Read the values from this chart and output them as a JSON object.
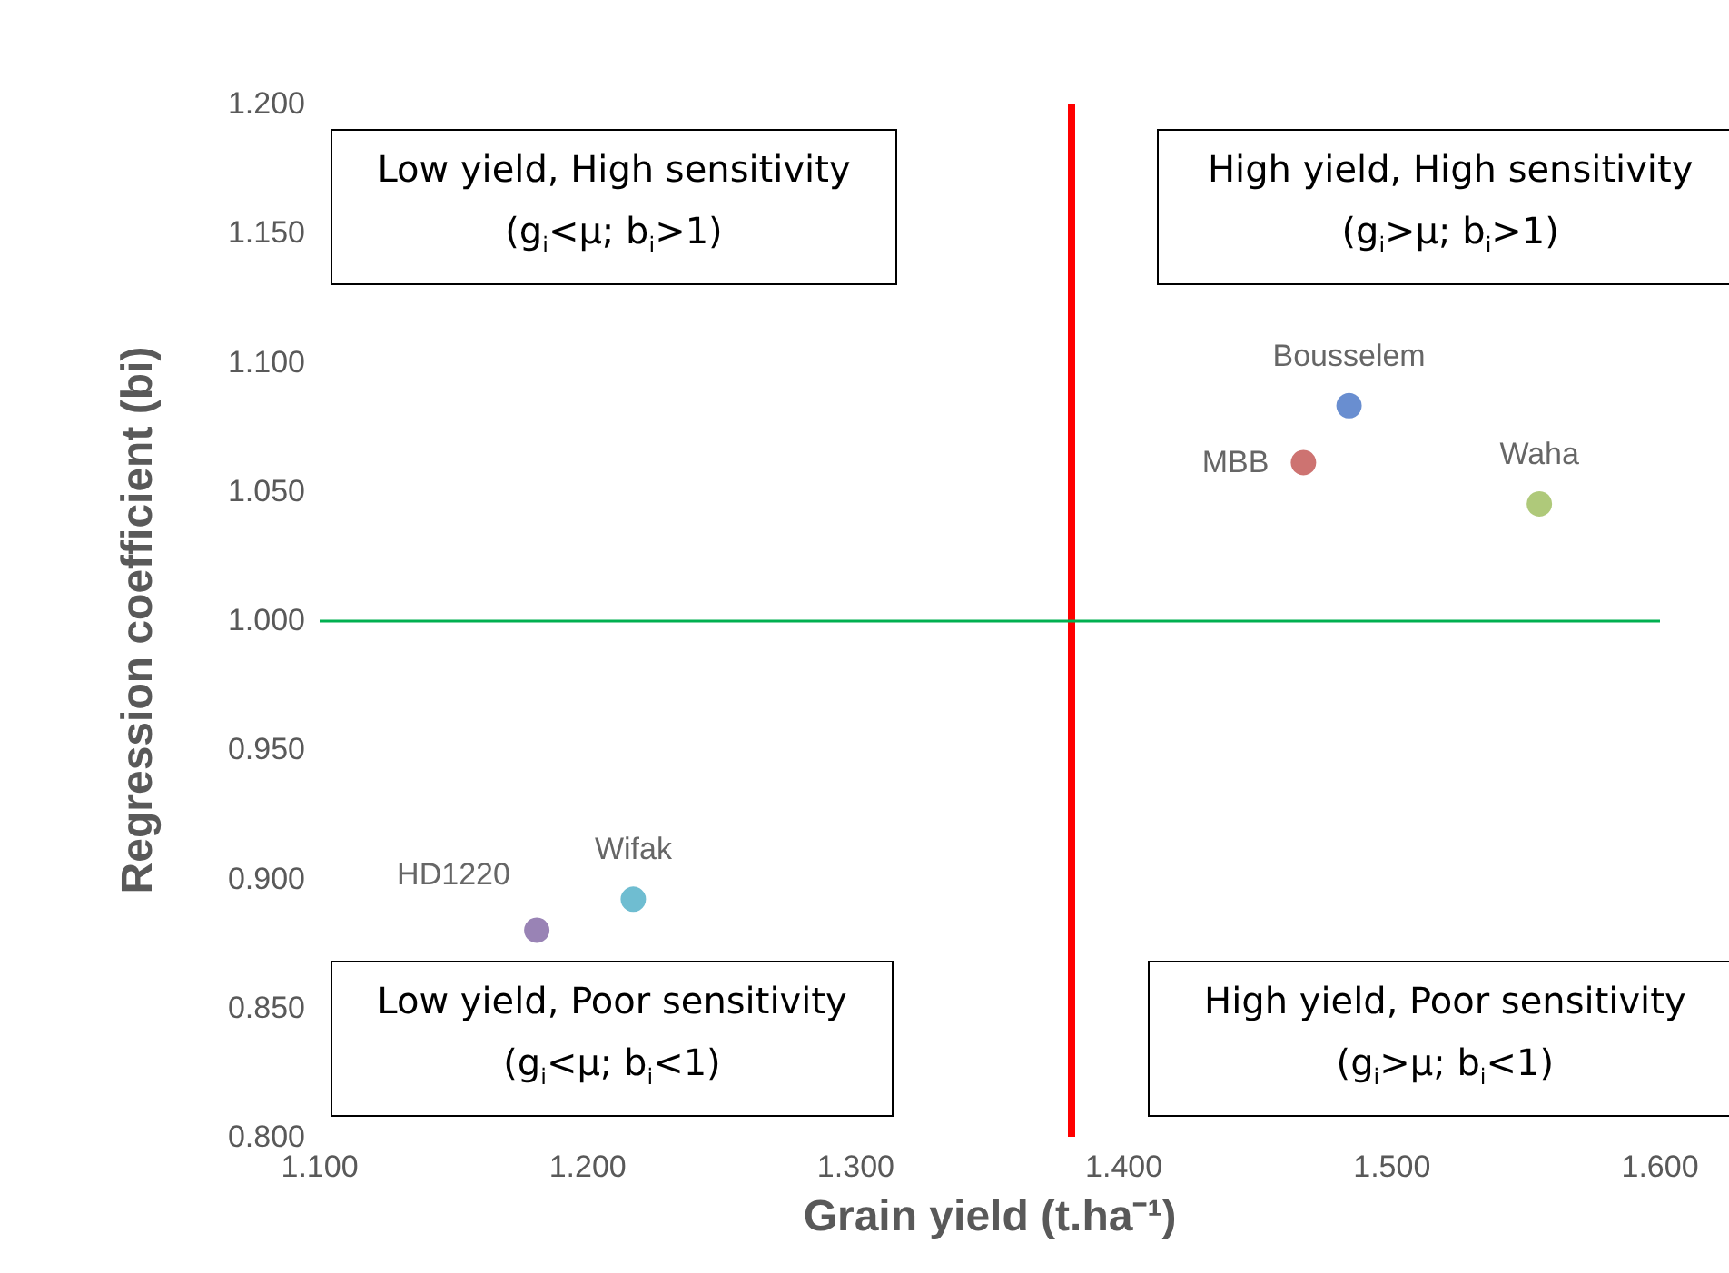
{
  "chart_data": {
    "type": "scatter",
    "xlabel": "Grain yield (t.ha⁻¹)",
    "ylabel": "Regression coefficient (bi)",
    "xlim": [
      1.1,
      1.6
    ],
    "ylim": [
      0.8,
      1.2
    ],
    "xticks": [
      {
        "value": 1.1,
        "label": "1.100"
      },
      {
        "value": 1.2,
        "label": "1.200"
      },
      {
        "value": 1.3,
        "label": "1.300"
      },
      {
        "value": 1.4,
        "label": "1.400"
      },
      {
        "value": 1.5,
        "label": "1.500"
      },
      {
        "value": 1.6,
        "label": "1.600"
      }
    ],
    "yticks": [
      {
        "value": 0.8,
        "label": "0.800"
      },
      {
        "value": 0.85,
        "label": "0.850"
      },
      {
        "value": 0.9,
        "label": "0.900"
      },
      {
        "value": 0.95,
        "label": "0.950"
      },
      {
        "value": 1.0,
        "label": "1.000"
      },
      {
        "value": 1.05,
        "label": "1.050"
      },
      {
        "value": 1.1,
        "label": "1.100"
      },
      {
        "value": 1.15,
        "label": "1.150"
      },
      {
        "value": 1.2,
        "label": "1.200"
      }
    ],
    "series": [
      {
        "name": "Bousselem",
        "color": "#4472c4",
        "x": [
          1.484
        ],
        "values": [
          1.083
        ]
      },
      {
        "name": "MBB",
        "color": "#c0504d",
        "x": [
          1.467
        ],
        "values": [
          1.061
        ]
      },
      {
        "name": "Waha",
        "color": "#9bbb59",
        "x": [
          1.555
        ],
        "values": [
          1.045
        ]
      },
      {
        "name": "Wifak",
        "color": "#4bacc6",
        "x": [
          1.217
        ],
        "values": [
          0.892
        ]
      },
      {
        "name": "HD1220",
        "color": "#8064a2",
        "x": [
          1.181
        ],
        "values": [
          0.88
        ]
      }
    ],
    "ref_lines": [
      {
        "axis": "x",
        "value": 1.38,
        "color": "#ff0000"
      },
      {
        "axis": "y",
        "value": 1.0,
        "color": "#00b050"
      }
    ],
    "annotations": [
      "Low yield, High sensitivity\n(g$_{i}$<μ; b$_{i}$>1)",
      "High yield, High sensitivity\n(g$_{i}$>μ; b$_{i}$>1)",
      "Low yield, Poor sensitivity\n(g$_{i}$<μ; b$_{i}$<1)",
      "High yield, Poor sensitivity\n(g$_{i}$>μ; b$_{i}$<1)"
    ],
    "grid": false,
    "legend": false,
    "marker": "circle"
  }
}
